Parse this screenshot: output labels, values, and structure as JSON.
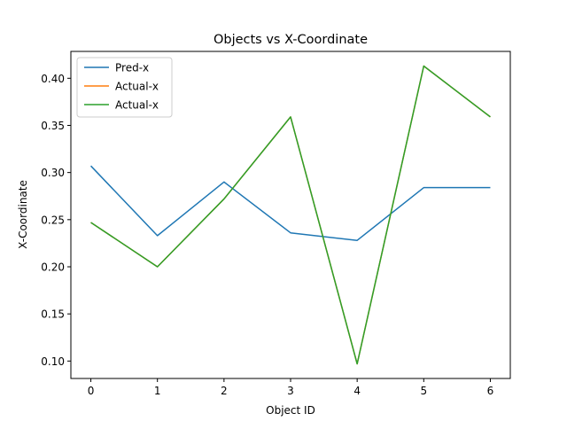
{
  "chart_data": {
    "type": "line",
    "title": "Objects vs X-Coordinate",
    "xlabel": "Object ID",
    "ylabel": "X-Coordinate",
    "x": [
      0,
      1,
      2,
      3,
      4,
      5,
      6
    ],
    "xticks": [
      "0",
      "1",
      "2",
      "3",
      "4",
      "5",
      "6"
    ],
    "yticks": [
      "0.10",
      "0.15",
      "0.20",
      "0.25",
      "0.30",
      "0.35",
      "0.40"
    ],
    "ytick_values": [
      0.1,
      0.15,
      0.2,
      0.25,
      0.3,
      0.35,
      0.4
    ],
    "xlim": [
      -0.3,
      6.3
    ],
    "ylim": [
      0.0815,
      0.4285
    ],
    "grid": false,
    "legend_position": "top-left",
    "series": [
      {
        "name": "Pred-x",
        "color": "#1f77b4",
        "values": [
          0.307,
          0.233,
          0.29,
          0.236,
          0.228,
          0.284,
          0.284
        ]
      },
      {
        "name": "Actual-x",
        "color": "#ff7f0e",
        "values": [
          0.247,
          0.2,
          0.272,
          0.359,
          0.097,
          0.413,
          0.359
        ]
      },
      {
        "name": "Actual-x",
        "color": "#2ca02c",
        "values": [
          0.247,
          0.2,
          0.272,
          0.359,
          0.097,
          0.413,
          0.359
        ]
      }
    ]
  }
}
